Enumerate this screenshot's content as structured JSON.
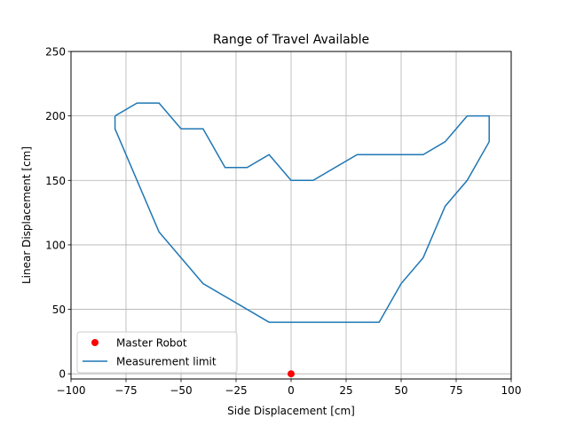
{
  "chart_data": {
    "type": "line",
    "title": "Range of Travel Available",
    "xlabel": "Side Displacement [cm]",
    "ylabel": "Linear Displacement [cm]",
    "xlim": [
      -100,
      100
    ],
    "ylim": [
      -4,
      250
    ],
    "xticks": [
      -100,
      -75,
      -50,
      -25,
      0,
      25,
      50,
      75,
      100
    ],
    "xtick_labels": [
      "−100",
      "−75",
      "−50",
      "−25",
      "0",
      "25",
      "50",
      "75",
      "100"
    ],
    "yticks": [
      0,
      50,
      100,
      150,
      200,
      250
    ],
    "ytick_labels": [
      "0",
      "50",
      "100",
      "150",
      "200",
      "250"
    ],
    "grid": true,
    "legend_position": "lower-left",
    "series": [
      {
        "name": "Master Robot",
        "kind": "scatter",
        "color": "#ff0000",
        "points": [
          [
            0,
            0
          ]
        ]
      },
      {
        "name": "Measurement limit",
        "kind": "line",
        "color": "#1f77b4",
        "points": [
          [
            -80,
            200
          ],
          [
            -70,
            210
          ],
          [
            -60,
            210
          ],
          [
            -50,
            190
          ],
          [
            -40,
            190
          ],
          [
            -30,
            160
          ],
          [
            -20,
            160
          ],
          [
            -10,
            170
          ],
          [
            0,
            150
          ],
          [
            10,
            150
          ],
          [
            30,
            170
          ],
          [
            60,
            170
          ],
          [
            70,
            180
          ],
          [
            80,
            200
          ],
          [
            90,
            200
          ],
          [
            90,
            180
          ],
          [
            80,
            150
          ],
          [
            70,
            130
          ],
          [
            60,
            90
          ],
          [
            50,
            70
          ],
          [
            40,
            40
          ],
          [
            -10,
            40
          ],
          [
            -40,
            70
          ],
          [
            -60,
            110
          ],
          [
            -80,
            190
          ],
          [
            -80,
            200
          ]
        ]
      }
    ]
  }
}
